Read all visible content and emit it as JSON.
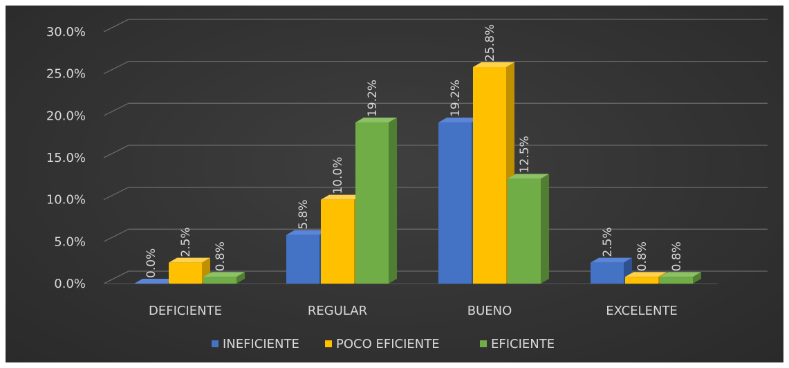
{
  "chart_data": {
    "type": "bar",
    "style": "3d-clustered-column",
    "categories": [
      "DEFICIENTE",
      "REGULAR",
      "BUENO",
      "EXCELENTE"
    ],
    "series": [
      {
        "name": "INEFICIENTE",
        "values": [
          0.0,
          5.8,
          19.2,
          2.5
        ],
        "labels": [
          "0.0%",
          "5.8%",
          "19.2%",
          "2.5%"
        ],
        "color": "#4472c4",
        "side_color": "#2f528f",
        "top_color": "#5b85d6"
      },
      {
        "name": "POCO EFICIENTE",
        "values": [
          2.5,
          10.0,
          25.8,
          0.8
        ],
        "labels": [
          "2.5%",
          "10.0%",
          "25.8%",
          "0.8%"
        ],
        "color": "#ffc000",
        "side_color": "#bf9000",
        "top_color": "#ffd24d"
      },
      {
        "name": "EFICIENTE",
        "values": [
          0.8,
          19.2,
          12.5,
          0.8
        ],
        "labels": [
          "0.8%",
          "19.2%",
          "12.5%",
          "0.8%"
        ],
        "color": "#70ad47",
        "side_color": "#507e32",
        "top_color": "#8cc265"
      }
    ],
    "yticks": [
      "0.0%",
      "5.0%",
      "10.0%",
      "15.0%",
      "20.0%",
      "25.0%",
      "30.0%"
    ],
    "ylim": [
      0,
      30
    ],
    "grid": true,
    "legend_position": "bottom",
    "background": "#333333",
    "text_color": "#d9d9d9"
  }
}
